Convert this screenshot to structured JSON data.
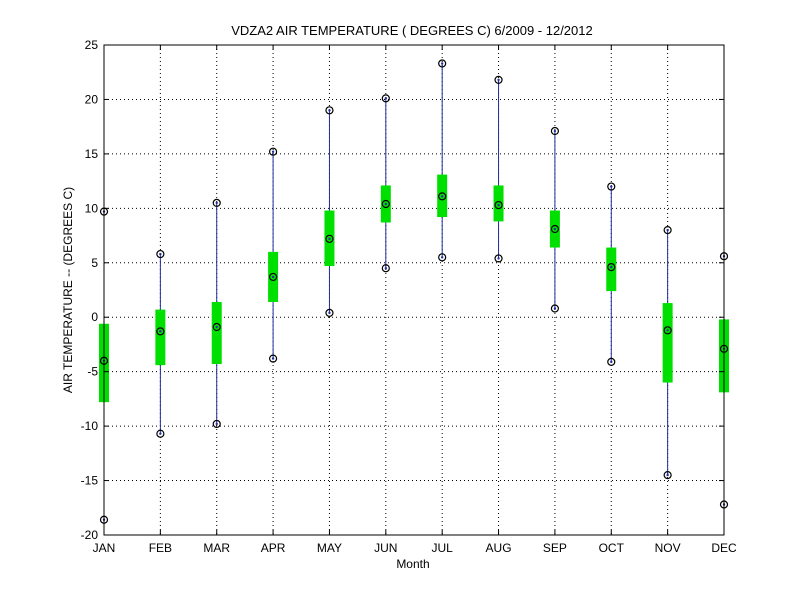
{
  "chart_data": {
    "type": "boxplot",
    "title": "VDZA2  AIR TEMPERATURE ( DEGREES C) 6/2009 - 12/2012",
    "xlabel": "Month",
    "ylabel": "AIR TEMPERATURE -- (DEGREES C)",
    "ylim": [
      -20,
      25
    ],
    "yticks": [
      -20,
      -15,
      -10,
      -5,
      0,
      5,
      10,
      15,
      20,
      25
    ],
    "grid": true,
    "categories": [
      "JAN",
      "FEB",
      "MAR",
      "APR",
      "MAY",
      "JUN",
      "JUL",
      "AUG",
      "SEP",
      "OCT",
      "NOV",
      "DEC"
    ],
    "max": [
      9.7,
      5.8,
      10.5,
      15.2,
      19.0,
      20.1,
      23.3,
      21.8,
      17.1,
      12.0,
      8.0,
      5.6
    ],
    "q3": [
      -0.6,
      0.7,
      1.4,
      6.0,
      9.8,
      12.1,
      13.1,
      12.1,
      9.8,
      6.4,
      1.3,
      -0.2
    ],
    "median": [
      -4.0,
      -1.3,
      -0.9,
      3.7,
      7.2,
      10.4,
      11.1,
      10.3,
      8.1,
      4.6,
      -1.2,
      -2.9
    ],
    "q1": [
      -7.8,
      -4.4,
      -4.3,
      1.4,
      4.7,
      8.7,
      9.2,
      8.8,
      6.4,
      2.4,
      -6.0,
      -6.9
    ],
    "min": [
      -18.6,
      -10.7,
      -9.8,
      -3.8,
      0.4,
      4.5,
      5.5,
      5.4,
      0.8,
      -4.1,
      -14.5,
      -17.2
    ],
    "colors": {
      "whisker": "#1f2f9e",
      "box": "#00e000",
      "marker": "#000000",
      "grid": "#000000"
    }
  }
}
